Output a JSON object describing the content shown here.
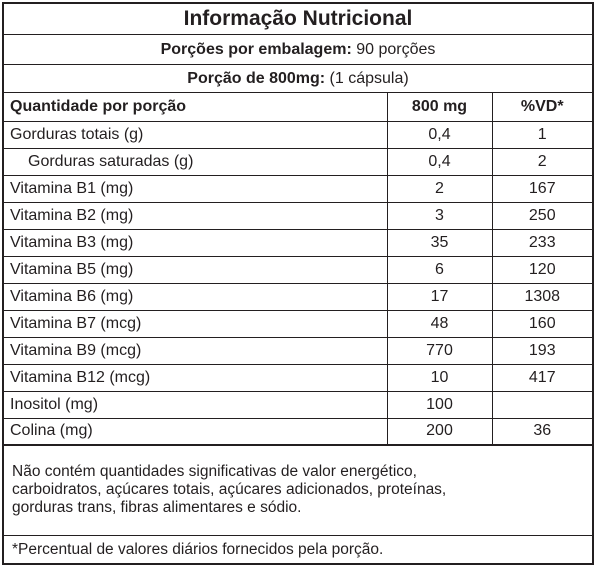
{
  "title": "Informação Nutricional",
  "servings": {
    "label": "Porções por embalagem:",
    "value": " 90 porções"
  },
  "portion": {
    "label": "Porção de 800mg:",
    "value": " (1 cápsula)"
  },
  "table": {
    "headers": [
      "Quantidade por porção",
      "800 mg",
      "%VD*"
    ],
    "rows": [
      {
        "name": "Gorduras totais (g)",
        "amount": "0,4",
        "dv": "1"
      },
      {
        "name": "Gorduras saturadas (g)",
        "amount": "0,4",
        "dv": "2"
      },
      {
        "name": "Vitamina B1 (mg)",
        "amount": "2",
        "dv": "167"
      },
      {
        "name": "Vitamina B2 (mg)",
        "amount": "3",
        "dv": "250"
      },
      {
        "name": "Vitamina B3 (mg)",
        "amount": "35",
        "dv": "233"
      },
      {
        "name": "Vitamina B5 (mg)",
        "amount": "6",
        "dv": "120"
      },
      {
        "name": "Vitamina B6 (mg)",
        "amount": "17",
        "dv": "1308"
      },
      {
        "name": "Vitamina B7 (mcg)",
        "amount": "48",
        "dv": "160"
      },
      {
        "name": "Vitamina B9 (mcg)",
        "amount": "770",
        "dv": "193"
      },
      {
        "name": "Vitamina B12 (mcg)",
        "amount": "10",
        "dv": "417"
      },
      {
        "name": "Inositol (mg)",
        "amount": "100",
        "dv": ""
      },
      {
        "name": "Colina (mg)",
        "amount": "200",
        "dv": "36"
      }
    ]
  },
  "note": "Não contém quantidades significativas de valor energético,\ncarboidratos, açúcares totais, açúcares adicionados, proteínas,\ngorduras trans, fibras alimentares e sódio.",
  "footnote": "*Percentual de valores diários fornecidos pela porção."
}
